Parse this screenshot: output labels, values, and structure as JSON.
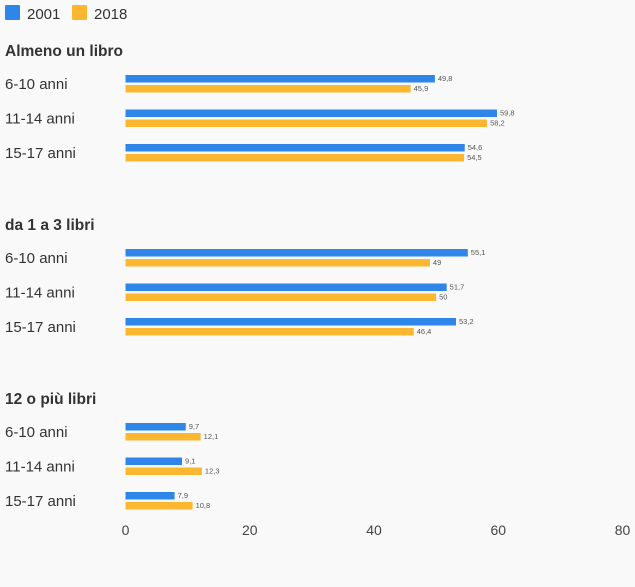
{
  "colors": {
    "s2001": "#2e86e8",
    "s2018": "#fcb731",
    "background": "#f9f9f9"
  },
  "chart_data": {
    "type": "bar",
    "orientation": "horizontal",
    "series": [
      {
        "name": "2001",
        "color": "#2e86e8"
      },
      {
        "name": "2018",
        "color": "#fcb731"
      }
    ],
    "xlim": [
      0,
      80
    ],
    "xticks": [
      "0",
      "20",
      "40",
      "60",
      "80"
    ],
    "legend_position": "top-left",
    "grid": false,
    "groups": [
      {
        "title": "Almeno un libro",
        "rows": [
          {
            "label": "6-10 anni",
            "values": [
              49.8,
              45.9
            ],
            "labels": [
              "49,8",
              "45,9"
            ]
          },
          {
            "label": "11-14 anni",
            "values": [
              59.8,
              58.2
            ],
            "labels": [
              "59,8",
              "58,2"
            ]
          },
          {
            "label": "15-17 anni",
            "values": [
              54.6,
              54.5
            ],
            "labels": [
              "54,6",
              "54,5"
            ]
          }
        ]
      },
      {
        "title": "da 1 a 3 libri",
        "rows": [
          {
            "label": "6-10 anni",
            "values": [
              55.1,
              49
            ],
            "labels": [
              "55,1",
              "49"
            ]
          },
          {
            "label": "11-14 anni",
            "values": [
              51.7,
              50
            ],
            "labels": [
              "51,7",
              "50"
            ]
          },
          {
            "label": "15-17 anni",
            "values": [
              53.2,
              46.4
            ],
            "labels": [
              "53,2",
              "46,4"
            ]
          }
        ]
      },
      {
        "title": "12 o più libri",
        "rows": [
          {
            "label": "6-10 anni",
            "values": [
              9.7,
              12.1
            ],
            "labels": [
              "9,7",
              "12,1"
            ]
          },
          {
            "label": "11-14 anni",
            "values": [
              9.1,
              12.3
            ],
            "labels": [
              "9,1",
              "12,3"
            ]
          },
          {
            "label": "15-17 anni",
            "values": [
              7.9,
              10.8
            ],
            "labels": [
              "7,9",
              "10,8"
            ]
          }
        ]
      }
    ]
  }
}
